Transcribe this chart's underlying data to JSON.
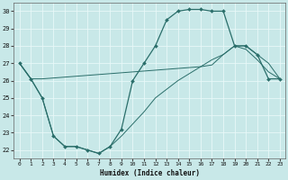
{
  "xlabel": "Humidex (Indice chaleur)",
  "xlim": [
    -0.5,
    23.5
  ],
  "ylim": [
    21.5,
    30.5
  ],
  "xticks": [
    0,
    1,
    2,
    3,
    4,
    5,
    6,
    7,
    8,
    9,
    10,
    11,
    12,
    13,
    14,
    15,
    16,
    17,
    18,
    19,
    20,
    21,
    22,
    23
  ],
  "yticks": [
    22,
    23,
    24,
    25,
    26,
    27,
    28,
    29,
    30
  ],
  "background_color": "#c8e8e8",
  "grid_color": "#e8f8f8",
  "line_color": "#2a6e6a",
  "line1_x": [
    0,
    1,
    2,
    3,
    4,
    5,
    6,
    7,
    8,
    9,
    10,
    11,
    12,
    13,
    14,
    15,
    16,
    17,
    18,
    19,
    20,
    21,
    22,
    23
  ],
  "line1_y": [
    27.0,
    26.1,
    25.0,
    22.8,
    22.2,
    22.2,
    22.0,
    21.8,
    22.2,
    23.2,
    26.0,
    27.0,
    28.0,
    29.5,
    30.0,
    30.1,
    30.1,
    30.0,
    30.0,
    28.0,
    28.0,
    27.5,
    26.1,
    26.1
  ],
  "line2_x": [
    0,
    1,
    2,
    3,
    4,
    5,
    6,
    7,
    8,
    9,
    10,
    11,
    12,
    13,
    14,
    15,
    16,
    17,
    18,
    19,
    20,
    21,
    22,
    23
  ],
  "line2_y": [
    27.0,
    26.1,
    26.1,
    26.15,
    26.2,
    26.25,
    26.3,
    26.35,
    26.4,
    26.45,
    26.5,
    26.55,
    26.6,
    26.65,
    26.7,
    26.75,
    26.8,
    26.9,
    27.5,
    28.0,
    28.0,
    27.5,
    27.0,
    26.1
  ],
  "line3_x": [
    0,
    1,
    2,
    3,
    4,
    5,
    6,
    7,
    8,
    9,
    10,
    11,
    12,
    13,
    14,
    15,
    16,
    17,
    18,
    19,
    20,
    21,
    22,
    23
  ],
  "line3_y": [
    27.0,
    26.1,
    25.0,
    22.8,
    22.2,
    22.2,
    22.0,
    21.8,
    22.2,
    22.8,
    23.5,
    24.2,
    25.0,
    25.5,
    26.0,
    26.4,
    26.8,
    27.2,
    27.5,
    28.0,
    27.8,
    27.2,
    26.5,
    26.1
  ]
}
